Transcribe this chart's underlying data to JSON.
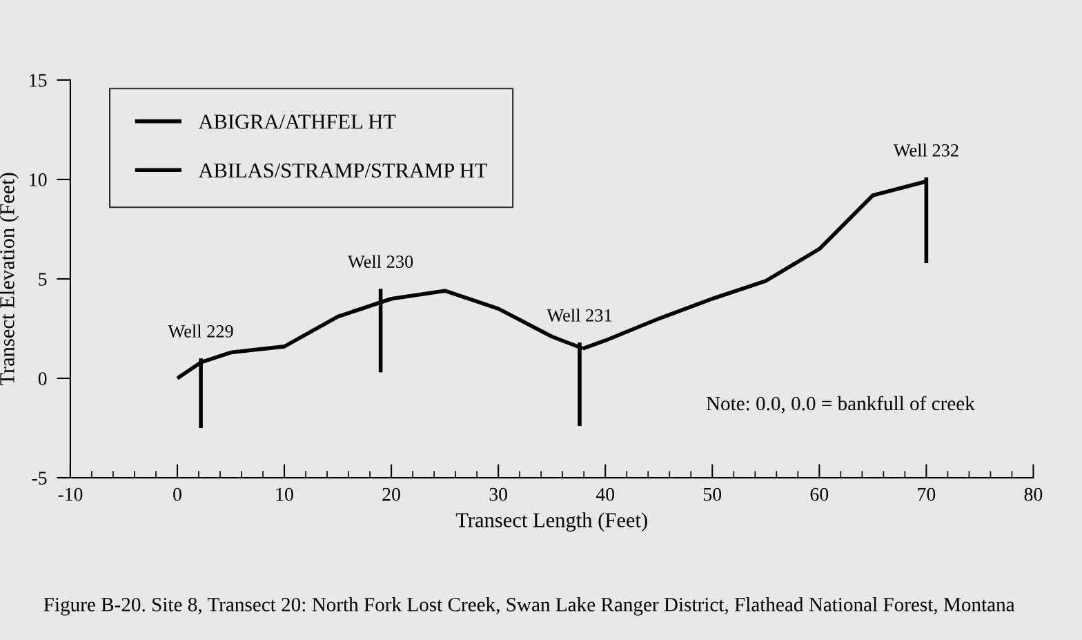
{
  "chart_data": {
    "type": "line",
    "xlabel": "Transect Length (Feet)",
    "ylabel": "Transect Elevation (Feet)",
    "xlim": [
      -10,
      80
    ],
    "xticks": [
      -10,
      0,
      10,
      20,
      30,
      40,
      50,
      60,
      70,
      80
    ],
    "ylim": [
      -5,
      15
    ],
    "yticks": [
      -5,
      0,
      5,
      10,
      15
    ],
    "grid": false,
    "legend": "top left",
    "marker": "none",
    "line_style": "solid",
    "series": [
      {
        "name": "ABIGRA/ATHFEL HT",
        "color": "#000000",
        "x": [
          0,
          2.2,
          5,
          10,
          15,
          20,
          25,
          30,
          35,
          37.9
        ],
        "values": [
          0,
          0.8,
          1.3,
          1.6,
          3.1,
          4.0,
          4.4,
          3.5,
          2.1,
          1.5
        ]
      },
      {
        "name": "ABILAS/STRAMP/STRAMP HT",
        "color": "#000000",
        "x": [
          37.9,
          40,
          45,
          50,
          55,
          60,
          65,
          70
        ],
        "values": [
          1.5,
          1.9,
          3.0,
          4.0,
          4.9,
          6.5,
          9.2,
          9.9
        ]
      },
      {
        "color": "#000000",
        "x": [
          2.2,
          2.2
        ],
        "values": [
          -2.5,
          1.0
        ]
      },
      {
        "color": "#000000",
        "x": [
          19,
          19
        ],
        "values": [
          0.3,
          4.5
        ]
      },
      {
        "color": "#000000",
        "x": [
          37.6,
          37.6
        ],
        "values": [
          -2.4,
          1.8
        ]
      },
      {
        "color": "#000000",
        "x": [
          70,
          70
        ],
        "values": [
          5.8,
          10.1
        ]
      }
    ],
    "annotations": [
      {
        "text": "Well 229",
        "x": 2.2,
        "y": 1.0
      },
      {
        "text": "Well 230",
        "x": 19,
        "y": 4.5
      },
      {
        "text": "Well 231",
        "x": 37.6,
        "y": 1.8
      },
      {
        "text": "Well 232",
        "x": 70,
        "y": 10.1
      },
      "Note: 0.0, 0.0 = bankfull of creek",
      "Figure B-20. Site 8, Transect 20: North Fork Lost Creek, Swan Lake Ranger District, Flathead National Forest, Montana"
    ]
  }
}
